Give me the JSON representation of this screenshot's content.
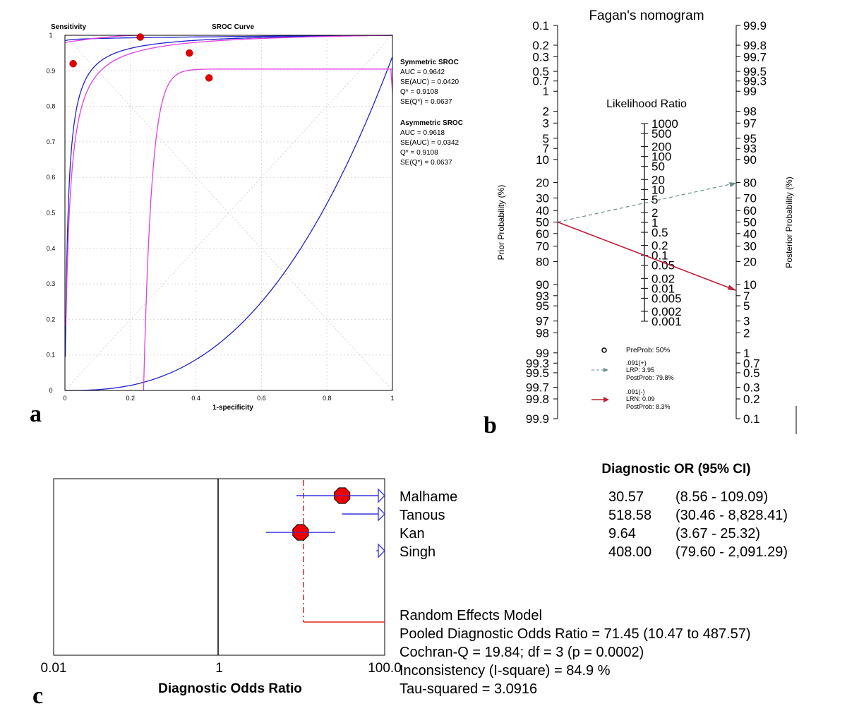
{
  "panel_labels": [
    "a",
    "b",
    "c"
  ],
  "colors": {
    "sroc_blue": "#2222cc",
    "sroc_magenta": "#e040e0",
    "study_point": "#e00000",
    "lrp_line": "#6a8a8a",
    "lrn_line": "#c0203a",
    "forest_ci": "#3333dd",
    "pooled_line": "#dd2222"
  },
  "chart_data": [
    {
      "panel": "a",
      "type": "scatter",
      "title": "SROC Curve",
      "xlabel": "1-specificity",
      "ylabel": "Sensitivity",
      "xlim": [
        0,
        1
      ],
      "ylim": [
        0,
        1
      ],
      "grid": true,
      "x_ticks": [
        "0",
        "0.2",
        "0.4",
        "0.6",
        "0.8",
        "1"
      ],
      "y_ticks": [
        "0",
        "0.1",
        "0.2",
        "0.3",
        "0.4",
        "0.5",
        "0.6",
        "0.7",
        "0.8",
        "0.9",
        "1"
      ],
      "points": [
        {
          "x": 0.025,
          "y": 0.92
        },
        {
          "x": 0.23,
          "y": 0.995
        },
        {
          "x": 0.38,
          "y": 0.95
        },
        {
          "x": 0.44,
          "y": 0.88
        }
      ],
      "annotations": [
        {
          "heading": "Symmetric SROC",
          "lines": [
            "AUC = 0.9642",
            "SE(AUC) = 0.0420",
            "Q* = 0.9108",
            "SE(Q*) = 0.0637"
          ]
        },
        {
          "heading": "Asymmetric SROC",
          "lines": [
            "AUC = 0.9618",
            "SE(AUC) = 0.0342",
            "Q* = 0.9108",
            "SE(Q*) = 0.0637"
          ]
        }
      ]
    },
    {
      "panel": "b",
      "type": "line",
      "title": "Fagan's nomogram",
      "left_axis_label": "Prior Probability (%)",
      "right_axis_label": "Posterior Probability (%)",
      "middle_axis_label": "Likelihood Ratio",
      "prior_ticks": [
        "0.1",
        "0.2",
        "0.3",
        "0.5",
        "0.7",
        "1",
        "2",
        "3",
        "5",
        "7",
        "10",
        "20",
        "30",
        "40",
        "50",
        "60",
        "70",
        "80",
        "90",
        "93",
        "95",
        "97",
        "98",
        "99",
        "99.3",
        "99.5",
        "99.7",
        "99.8",
        "99.9"
      ],
      "posterior_ticks": [
        "99.9",
        "99.8",
        "99.7",
        "99.5",
        "99.3",
        "99",
        "98",
        "97",
        "95",
        "93",
        "90",
        "80",
        "70",
        "60",
        "50",
        "40",
        "30",
        "20",
        "10",
        "7",
        "5",
        "3",
        "2",
        "1",
        "0.7",
        "0.5",
        "0.3",
        "0.2",
        "0.1"
      ],
      "lr_ticks": [
        "1000",
        "500",
        "200",
        "100",
        "50",
        "20",
        "10",
        "5",
        "2",
        "1",
        "0.5",
        "0.2",
        "0.1",
        "0.05",
        "0.02",
        "0.01",
        "0.005",
        "0.002",
        "0.001"
      ],
      "pre_prob": 50,
      "lines": [
        {
          "name": "LRP",
          "lr": 3.95,
          "post_prob": 79.8,
          "style": "dashed"
        },
        {
          "name": "LRN",
          "lr": 0.09,
          "post_prob": 8.3,
          "style": "solid"
        }
      ],
      "legend": [
        {
          "line1": "PreProb: 50%"
        },
        {
          "line1": ".091(+)",
          "line2": "LRP: 3.95",
          "line3": "PostProb: 79.8%"
        },
        {
          "line1": ".091(-)",
          "line2": "LRN: 0.09",
          "line3": "PostProb: 8.3%"
        }
      ]
    },
    {
      "panel": "c",
      "type": "scatter",
      "subtype": "forest",
      "xlabel": "Diagnostic Odds Ratio",
      "x_ticks": [
        "0.01",
        "1",
        "100.0"
      ],
      "xlim": [
        0.01,
        100
      ],
      "x_scale": "log",
      "column_header": "Diagnostic OR (95% CI)",
      "studies": [
        {
          "name": "Malhame",
          "or": 30.57,
          "lo": 8.56,
          "hi": 109.09,
          "or_text": "30.57",
          "ci_text": "(8.56 - 109.09)",
          "marker": true
        },
        {
          "name": "Tanous",
          "or": 518.58,
          "lo": 30.46,
          "hi": 8828.41,
          "or_text": "518.58",
          "ci_text": "(30.46 - 8,828.41)",
          "marker": false
        },
        {
          "name": "Kan",
          "or": 9.64,
          "lo": 3.67,
          "hi": 25.32,
          "or_text": "9.64",
          "ci_text": "(3.67 - 25.32)",
          "marker": true
        },
        {
          "name": "Singh",
          "or": 408.0,
          "lo": 79.6,
          "hi": 2091.29,
          "or_text": "408.00",
          "ci_text": "(79.60 - 2,091.29)",
          "marker": false
        }
      ],
      "pooled_or": 71.45,
      "summary_lines": [
        "Random Effects Model",
        "Pooled Diagnostic Odds Ratio = 71.45 (10.47 to 487.57)",
        "Cochran-Q = 19.84; df =  3 (p = 0.0002)",
        "Inconsistency (I-square) = 84.9 %",
        "Tau-squared = 3.0916"
      ]
    }
  ]
}
